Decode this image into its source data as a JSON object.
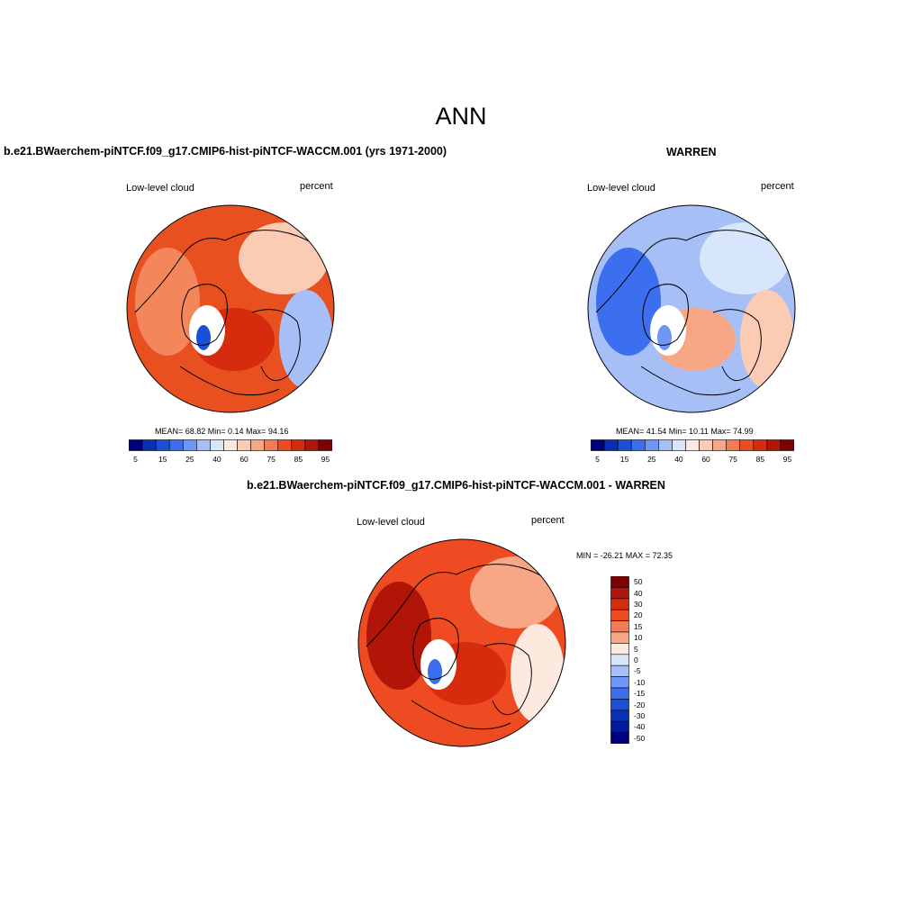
{
  "figure_title": "ANN",
  "panels": [
    {
      "title": "b.e21.BWaerchem-piNTCF.f09_g17.CMIP6-hist-piNTCF-WACCM.001 (yrs 1971-2000)",
      "left_label": "Low-level cloud",
      "right_label": "percent",
      "stats": "MEAN=  68.82  Min=   0.14  Max=  94.16"
    },
    {
      "title": "WARREN",
      "left_label": "Low-level cloud",
      "right_label": "percent",
      "stats": "MEAN=  41.54  Min=  10.11  Max=  74.99"
    },
    {
      "title": "b.e21.BWaerchem-piNTCF.f09_g17.CMIP6-hist-piNTCF-WACCM.001 - WARREN",
      "left_label": "Low-level cloud",
      "right_label": "percent",
      "stats": "MIN = -26.21 MAX =  72.35"
    }
  ],
  "colorbar_main": {
    "colors": [
      "#00007f",
      "#0a2fb5",
      "#1a4fd8",
      "#3b6ff0",
      "#6f95f5",
      "#a6c0f7",
      "#d8e6fb",
      "#fde9de",
      "#fbcbb4",
      "#f8a786",
      "#f47b55",
      "#ee4b22",
      "#d72b0e",
      "#b01508",
      "#7f0000"
    ],
    "tick_labels": [
      "5",
      "15",
      "25",
      "40",
      "60",
      "75",
      "85",
      "95"
    ]
  },
  "colorbar_diff": {
    "colors": [
      "#7f0000",
      "#b01508",
      "#d72b0e",
      "#ee4b22",
      "#f47b55",
      "#f8a786",
      "#fde9de",
      "#d8e6fb",
      "#a6c0f7",
      "#6f95f5",
      "#3b6ff0",
      "#1a4fd8",
      "#0a2fb5",
      "#001a9e",
      "#00007f"
    ],
    "labels": [
      "50",
      "40",
      "30",
      "20",
      "15",
      "10",
      "5",
      "0",
      "-5",
      "-10",
      "-15",
      "-20",
      "-30",
      "-40",
      "-50"
    ]
  },
  "maps": {
    "model": {
      "base": "#e8501f",
      "fields": [
        {
          "c": "#f4865c"
        },
        {
          "c": "#fbcbb4"
        },
        {
          "c": "#a6c0f7"
        },
        {
          "c": "#d72b0e"
        },
        {
          "c": "#ffffff"
        },
        {
          "c": "#1a4fd8"
        }
      ]
    },
    "obs": {
      "base": "#a6c0f7",
      "fields": [
        {
          "c": "#3b6ff0"
        },
        {
          "c": "#d8e6fb"
        },
        {
          "c": "#fbcbb4"
        },
        {
          "c": "#f8a786"
        },
        {
          "c": "#ffffff"
        },
        {
          "c": "#6f95f5"
        }
      ]
    },
    "diff": {
      "base": "#ee4b22",
      "fields": [
        {
          "c": "#b01508"
        },
        {
          "c": "#f8a786"
        },
        {
          "c": "#fde9de"
        },
        {
          "c": "#d72b0e"
        },
        {
          "c": "#ffffff"
        },
        {
          "c": "#3b6ff0"
        }
      ]
    }
  }
}
